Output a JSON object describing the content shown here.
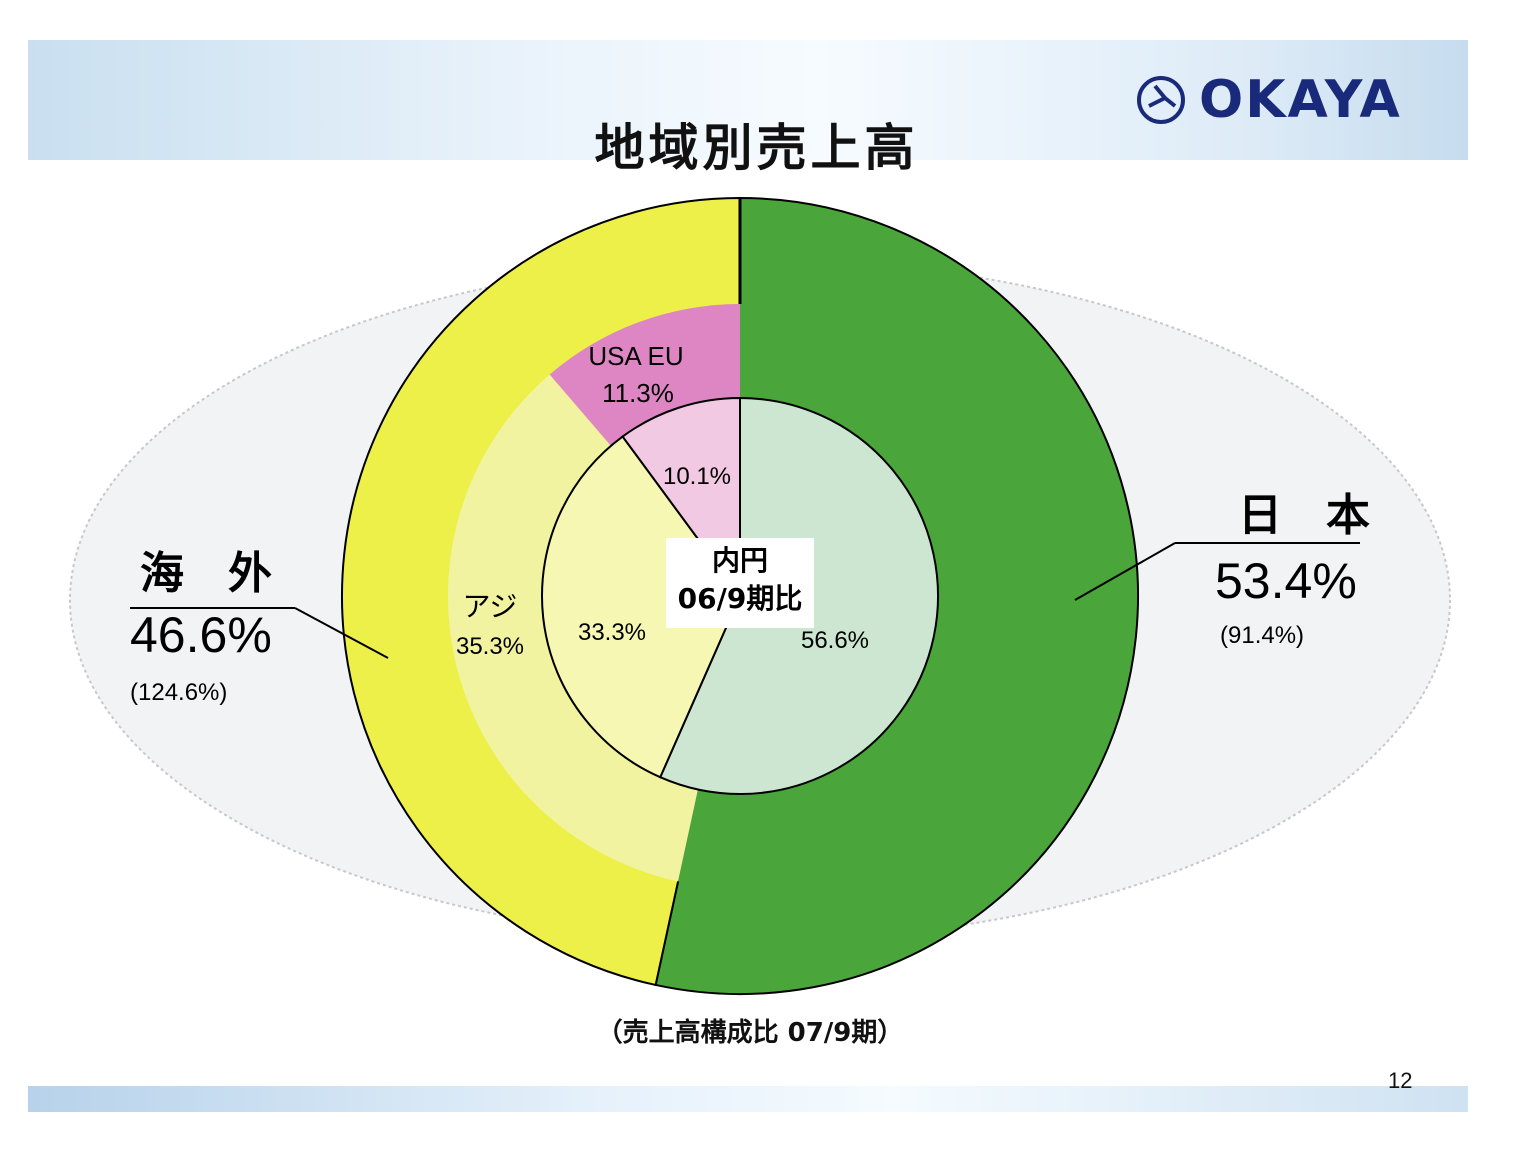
{
  "slide": {
    "title": "地域別売上高",
    "logo_text": "OKAYA",
    "caption": "（売上高構成比 07/9期）",
    "page_number": "12"
  },
  "chart_data": {
    "type": "pie",
    "subtype": "nested-donut",
    "center_label": [
      "内円",
      "06/9期比"
    ],
    "outer_ring": {
      "description_label": "",
      "slices": [
        {
          "label": "日　本",
          "value": 53.4,
          "value_label": "53.4%",
          "growth_label": "(91.4%)",
          "color": "#4aa63a"
        },
        {
          "label": "海　外",
          "value": 46.6,
          "value_label": "46.6%",
          "growth_label": "(124.6%)",
          "color": "#eef04a"
        }
      ]
    },
    "middle_ring": {
      "slices": [
        {
          "label": "日本",
          "value": 53.4,
          "color": "#4aa63a"
        },
        {
          "label": "アジア",
          "value": 35.3,
          "value_label": "35.3%",
          "color": "#f1f3a0"
        },
        {
          "label": "USA EU",
          "value": 11.3,
          "value_label": "11.3%",
          "color": "#de86c4"
        }
      ]
    },
    "inner_circle": {
      "slices": [
        {
          "label": "日本",
          "value": 56.6,
          "value_label": "56.6%",
          "color": "#cde6d2"
        },
        {
          "label": "アジア",
          "value": 33.3,
          "value_label": "33.3%",
          "color": "#f5f7b2"
        },
        {
          "label": "USA EU",
          "value": 10.1,
          "value_label": "10.1%",
          "color": "#f2c9e2"
        }
      ]
    },
    "labels": {
      "japan_name": "日　本",
      "overseas_name": "海　外",
      "asia_name": "アジ",
      "usaeu_name": "USA EU"
    }
  }
}
